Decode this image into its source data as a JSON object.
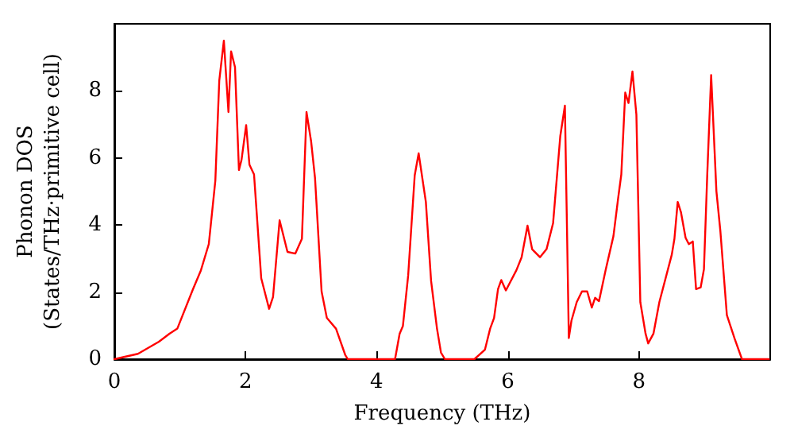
{
  "chart_data": {
    "type": "line",
    "xlabel": "Frequency (THz)",
    "ylabel": "Phonon DOS\n(States/THz·primitive cell)",
    "x": [
      0,
      0.36,
      0.68,
      0.84,
      0.96,
      1.2,
      1.32,
      1.44,
      1.54,
      1.6,
      1.67,
      1.74,
      1.78,
      1.84,
      1.9,
      1.94,
      2.01,
      2.06,
      2.13,
      2.24,
      2.36,
      2.42,
      2.52,
      2.64,
      2.76,
      2.86,
      2.93,
      3.0,
      3.06,
      3.16,
      3.24,
      3.38,
      3.52,
      3.56,
      4.2,
      4.28,
      4.35,
      4.4,
      4.48,
      4.58,
      4.64,
      4.75,
      4.83,
      4.92,
      4.98,
      5.04,
      5.49,
      5.65,
      5.73,
      5.79,
      5.85,
      5.9,
      5.97,
      6.13,
      6.21,
      6.3,
      6.37,
      6.49,
      6.59,
      6.69,
      6.8,
      6.87,
      6.93,
      6.97,
      7.05,
      7.13,
      7.21,
      7.28,
      7.33,
      7.39,
      7.49,
      7.61,
      7.68,
      7.73,
      7.79,
      7.84,
      7.9,
      7.96,
      8.02,
      8.1,
      8.14,
      8.22,
      8.31,
      8.5,
      8.54,
      8.59,
      8.64,
      8.71,
      8.76,
      8.82,
      8.87,
      8.94,
      8.99,
      9.04,
      9.1,
      9.18,
      9.24,
      9.34,
      9.46,
      9.57,
      9.98
    ],
    "series": [
      {
        "color": "#ff0000",
        "values": [
          0,
          0.16,
          0.52,
          0.76,
          0.91,
          2.09,
          2.65,
          3.43,
          5.32,
          8.31,
          9.5,
          7.37,
          9.18,
          8.71,
          5.64,
          5.95,
          6.98,
          5.8,
          5.51,
          2.41,
          1.5,
          1.86,
          4.14,
          3.2,
          3.15,
          3.59,
          7.37,
          6.5,
          5.4,
          2.02,
          1.23,
          0.91,
          0.13,
          0,
          0,
          0,
          0.76,
          0.99,
          2.49,
          5.48,
          6.14,
          4.69,
          2.33,
          0.91,
          0.2,
          0,
          0,
          0.28,
          0.91,
          1.23,
          2.09,
          2.36,
          2.05,
          2.65,
          3.04,
          3.98,
          3.28,
          3.04,
          3.28,
          4.06,
          6.66,
          7.56,
          0.63,
          1.15,
          1.7,
          2.02,
          2.02,
          1.54,
          1.83,
          1.73,
          2.65,
          3.67,
          4.77,
          5.51,
          7.95,
          7.64,
          8.58,
          7.29,
          1.7,
          0.76,
          0.47,
          0.76,
          1.7,
          3.12,
          3.59,
          4.69,
          4.38,
          3.62,
          3.43,
          3.51,
          2.09,
          2.14,
          2.68,
          5.48,
          8.47,
          5.01,
          3.83,
          1.31,
          0.6,
          0,
          0
        ]
      }
    ],
    "xlim": [
      0,
      10
    ],
    "xticks": [
      0,
      2,
      4,
      6,
      8
    ],
    "ylim": [
      0,
      10
    ],
    "yticks": [
      0,
      2,
      4,
      6,
      8
    ],
    "grid": false,
    "marker": "none",
    "line_style": "solid"
  }
}
